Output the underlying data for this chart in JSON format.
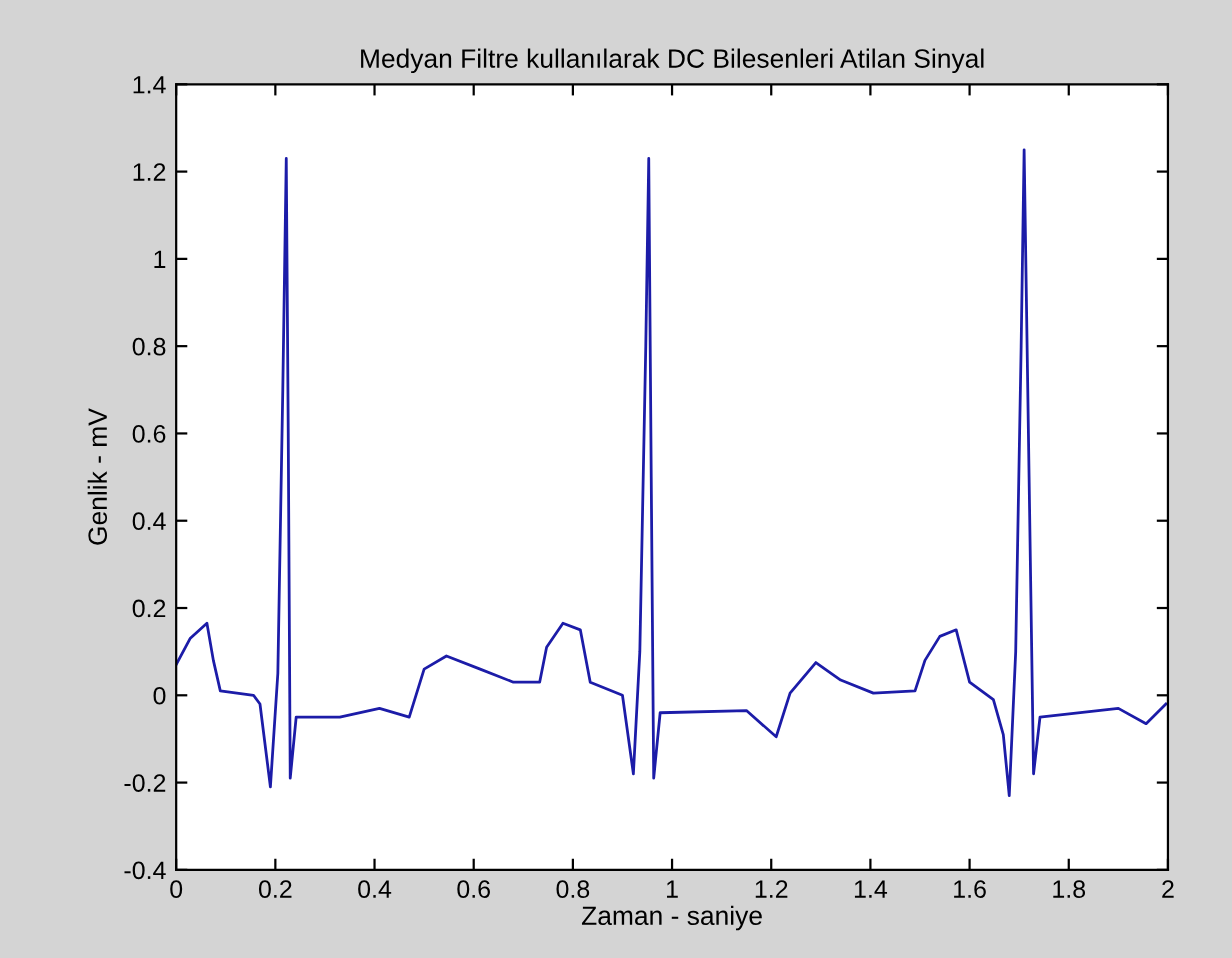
{
  "chart_data": {
    "type": "line",
    "title": "Medyan Filtre kullanılarak DC Bilesenleri Atilan Sinyal",
    "xlabel": "Zaman - saniye",
    "ylabel": "Genlik - mV",
    "x": [
      0,
      0.028,
      0.062,
      0.075,
      0.089,
      0.156,
      0.169,
      0.19,
      0.205,
      0.215,
      0.222,
      0.226,
      0.23,
      0.242,
      0.33,
      0.41,
      0.47,
      0.5,
      0.545,
      0.613,
      0.68,
      0.733,
      0.747,
      0.78,
      0.815,
      0.835,
      0.9,
      0.922,
      0.935,
      0.947,
      0.953,
      0.958,
      0.963,
      0.976,
      1.15,
      1.21,
      1.238,
      1.29,
      1.34,
      1.406,
      1.49,
      1.51,
      1.54,
      1.573,
      1.6,
      1.648,
      1.668,
      1.68,
      1.693,
      1.704,
      1.71,
      1.72,
      1.729,
      1.742,
      1.9,
      1.956,
      1.996
    ],
    "series": [
      {
        "color": "#1c1ca8",
        "values": [
          0.07,
          0.13,
          0.165,
          0.08,
          0.01,
          0.0,
          -0.02,
          -0.21,
          0.05,
          0.7,
          1.23,
          0.6,
          -0.19,
          -0.05,
          -0.05,
          -0.03,
          -0.05,
          0.06,
          0.09,
          0.06,
          0.03,
          0.03,
          0.11,
          0.165,
          0.15,
          0.03,
          0.0,
          -0.18,
          0.1,
          0.8,
          1.23,
          0.5,
          -0.19,
          -0.04,
          -0.035,
          -0.095,
          0.005,
          0.075,
          0.035,
          0.005,
          0.01,
          0.08,
          0.135,
          0.15,
          0.03,
          -0.01,
          -0.09,
          -0.23,
          0.1,
          0.8,
          1.25,
          0.5,
          -0.18,
          -0.05,
          -0.03,
          -0.065,
          -0.02
        ]
      }
    ],
    "xlim": [
      0,
      2
    ],
    "ylim": [
      -0.4,
      1.4
    ],
    "xticks": [
      0,
      0.2,
      0.4,
      0.6,
      0.8,
      1,
      1.2,
      1.4,
      1.6,
      1.8,
      2
    ],
    "yticks": [
      -0.4,
      -0.2,
      0,
      0.2,
      0.4,
      0.6,
      0.8,
      1,
      1.2,
      1.4
    ],
    "grid": false,
    "line_style": "solid"
  }
}
